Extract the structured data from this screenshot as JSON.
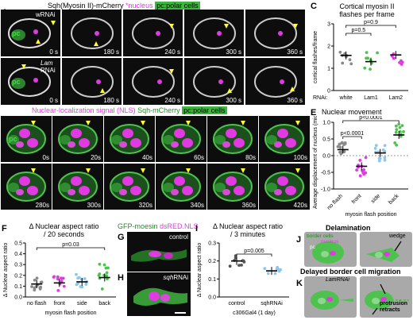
{
  "panels": {
    "A": {
      "letter": "A",
      "rnai": "wRNAi",
      "pc": "pc",
      "times": [
        "0 s",
        "180 s",
        "240 s",
        "300 s",
        "360 s"
      ]
    },
    "B": {
      "letter": "B",
      "rnai_lam": "Lam",
      "rnai": "RNAi",
      "pc": "pc",
      "times": [
        "0 s",
        "180 s",
        "240 s",
        "300 s",
        "360 s"
      ]
    },
    "AB_title": {
      "sqh": "Sqh(Myosin II)-mCherry",
      "star": "*",
      "nucleus": "nucleus",
      "pc": "pc:polar cells"
    },
    "C": {
      "letter": "C",
      "title_line1": "Cortical myosin II",
      "title_line2": "flashes per frame",
      "ylabel": "cortical flashes/frame",
      "rnai_label": "RNAi:",
      "categories": [
        "white",
        "Lam1",
        "Lam2"
      ],
      "p1": "p=0.5",
      "p2": "p=0.9",
      "yticks": [
        "0",
        "1",
        "2",
        "3"
      ]
    },
    "D": {
      "letter": "D",
      "title_nls": "Nuclear-localization signal (NLS)",
      "title_sqh": "Sqh-mCherry",
      "title_pc": "pc:polar cells",
      "pc": "pc",
      "times_top": [
        "0s",
        "20s",
        "40s",
        "60s",
        "80s",
        "100s"
      ],
      "times_bottom": [
        "280s",
        "300s",
        "320s",
        "340s",
        "360s",
        "420s"
      ]
    },
    "E": {
      "letter": "E",
      "title": "Nuclear movement",
      "ylabel": "Average displacement of nucleus (microns)",
      "categories": [
        "no flash",
        "front",
        "side",
        "back"
      ],
      "xlabel": "myosin flash position",
      "p1": "p<0.0001",
      "p2": "p<0.0001",
      "yticks": [
        "-1.0",
        "-0.5",
        "0.0",
        "0.5",
        "1.0"
      ]
    },
    "F": {
      "letter": "F",
      "title_line1": "Δ Nuclear aspect ratio",
      "title_line2": "/ 20 seconds",
      "ylabel": "Δ Nuclear aspect ratio",
      "categories": [
        "no flash",
        "front",
        "side",
        "back"
      ],
      "xlabel": "myosin flash position",
      "p1": "p=0.03",
      "yticks": [
        "0.0",
        "0.1",
        "0.2",
        "0.3",
        "0.4",
        "0.5"
      ]
    },
    "G": {
      "letter": "G",
      "title_gfp": "GFP-moesin",
      "title_ds": "dsRED.NLS",
      "label": "control"
    },
    "H": {
      "letter": "H",
      "label_italic": "sqh",
      "label": "RNAi"
    },
    "I": {
      "letter": "I",
      "title_line1": "Δ Nuclear aspect ratio",
      "title_line2": "/ 3 minutes",
      "ylabel": "Δ Nuclear aspect ratio",
      "categories": [
        "control",
        "sqhRNAi"
      ],
      "xlabel": "c306Gal4 (1 day)",
      "p1": "p=0.005",
      "yticks": [
        "0.0",
        "0.1",
        "0.2",
        "0.3"
      ]
    },
    "J": {
      "letter": "J",
      "title": "Delamination",
      "legend_border": "border cells",
      "legend_nucleus": "nucleus",
      "legend_pc": "pc",
      "label_wedge": "wedge"
    },
    "K": {
      "letter": "K",
      "title": "Delayed border cell migration",
      "label_lam": "LamRNAi",
      "label_protrusion": "protrusion",
      "label_retracts": "retracts"
    }
  },
  "colors": {
    "green": "#4ec24e",
    "magenta": "#e23ae2",
    "darkgreen": "#1f8f1f",
    "grey": "#8a8a8a",
    "blue": "#8ec5ea"
  },
  "chart_data": [
    {
      "type": "scatter",
      "title": "Cortical myosin II flashes per frame",
      "ylabel": "cortical flashes/frame",
      "categories": [
        "white",
        "Lam1",
        "Lam2"
      ],
      "ylim": [
        0,
        3
      ],
      "series": [
        {
          "values": [
            1.58,
            1.3,
            1.6
          ]
        }
      ]
    },
    {
      "type": "scatter",
      "title": "Nuclear movement",
      "ylabel": "Average displacement of nucleus (microns)",
      "xlabel": "myosin flash position",
      "categories": [
        "no flash",
        "front",
        "side",
        "back"
      ],
      "ylim": [
        -1.0,
        1.0
      ],
      "series": [
        {
          "values": [
            0.18,
            -0.32,
            0.08,
            0.62
          ]
        }
      ]
    },
    {
      "type": "scatter",
      "title": "Δ Nuclear aspect ratio / 20 seconds",
      "ylabel": "Δ Nuclear aspect ratio",
      "xlabel": "myosin flash position",
      "categories": [
        "no flash",
        "front",
        "side",
        "back"
      ],
      "ylim": [
        0,
        0.5
      ],
      "series": [
        {
          "values": [
            0.12,
            0.13,
            0.14,
            0.18
          ]
        }
      ]
    },
    {
      "type": "scatter",
      "title": "Δ Nuclear aspect ratio / 3 minutes",
      "ylabel": "Δ Nuclear aspect ratio",
      "xlabel": "c306Gal4 (1 day)",
      "categories": [
        "control",
        "sqhRNAi"
      ],
      "ylim": [
        0,
        0.3
      ],
      "series": [
        {
          "values": [
            0.2,
            0.145
          ]
        }
      ]
    }
  ]
}
